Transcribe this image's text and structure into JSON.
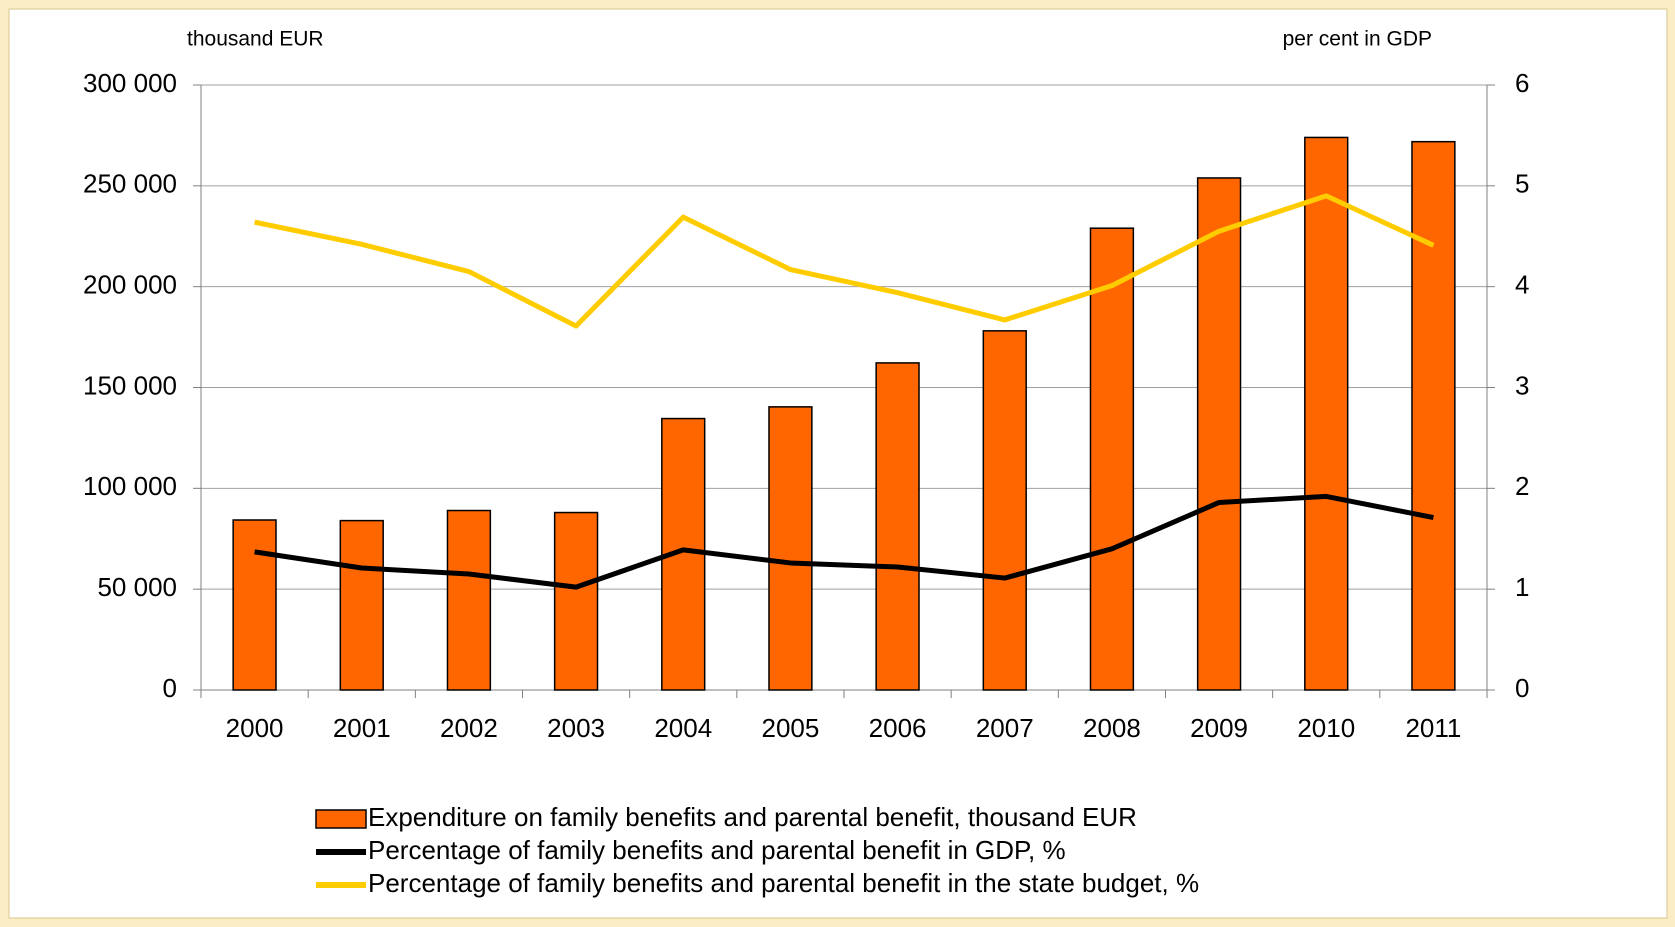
{
  "chart_data": {
    "type": "bar_line",
    "y_label": "thousand EUR",
    "y2_label": "per cent in GDP",
    "categories": [
      "2000",
      "2001",
      "2002",
      "2003",
      "2004",
      "2005",
      "2006",
      "2007",
      "2008",
      "2009",
      "2010",
      "2011"
    ],
    "ylim": [
      0,
      300000
    ],
    "yticks": [
      0,
      {
        "value": 50000,
        "label": "50 000"
      },
      {
        "value": 100000,
        "label": "100 000"
      },
      {
        "value": 150000,
        "label": "150 000"
      },
      {
        "value": 200000,
        "label": "200 000"
      },
      {
        "value": 250000,
        "label": "250 000"
      },
      {
        "value": 300000,
        "label": "300 000"
      }
    ],
    "y2lim": [
      0,
      6
    ],
    "y2ticks": [
      0,
      1,
      2,
      3,
      4,
      5,
      6
    ],
    "grid": true,
    "series": [
      {
        "name": "Expenditure on family benefits and parental benefit, thousand EUR",
        "type": "bar",
        "color": "#ff6600",
        "values": [
          84300,
          84000,
          89000,
          88000,
          134600,
          140400,
          162200,
          178100,
          229000,
          253900,
          274000,
          271900
        ]
      },
      {
        "name": "Percentage of family benefits and parental benefit in GDP, %",
        "type": "line",
        "axis": "y2",
        "color": "#000000",
        "values": [
          1.37,
          1.21,
          1.15,
          1.02,
          1.39,
          1.26,
          1.22,
          1.11,
          1.4,
          1.86,
          1.92,
          1.71
        ]
      },
      {
        "name": "Percentage of family benefits and parental benefit in the state budget, %",
        "type": "line",
        "axis": "y2",
        "color": "#ffcc00",
        "values": [
          4.64,
          4.42,
          4.15,
          3.61,
          4.69,
          4.17,
          3.94,
          3.67,
          4.01,
          4.55,
          4.9,
          4.41
        ]
      }
    ]
  }
}
